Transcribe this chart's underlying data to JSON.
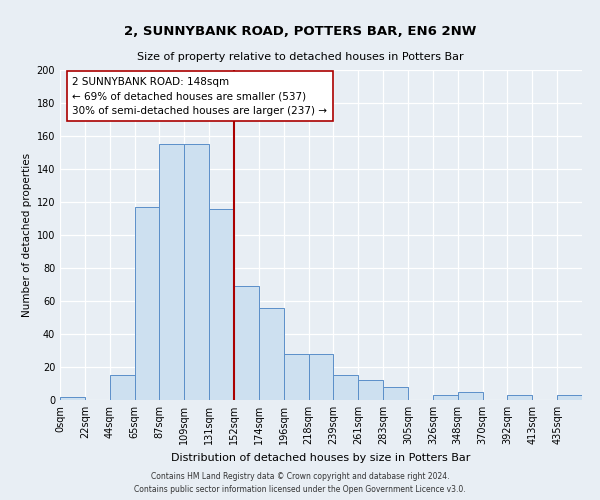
{
  "title": "2, SUNNYBANK ROAD, POTTERS BAR, EN6 2NW",
  "subtitle": "Size of property relative to detached houses in Potters Bar",
  "xlabel": "Distribution of detached houses by size in Potters Bar",
  "ylabel": "Number of detached properties",
  "bar_labels": [
    "0sqm",
    "22sqm",
    "44sqm",
    "65sqm",
    "87sqm",
    "109sqm",
    "131sqm",
    "152sqm",
    "174sqm",
    "196sqm",
    "218sqm",
    "239sqm",
    "261sqm",
    "283sqm",
    "305sqm",
    "326sqm",
    "348sqm",
    "370sqm",
    "392sqm",
    "413sqm",
    "435sqm"
  ],
  "bar_values": [
    2,
    0,
    15,
    117,
    155,
    155,
    116,
    69,
    56,
    28,
    28,
    15,
    12,
    8,
    0,
    3,
    5,
    0,
    3,
    0,
    3
  ],
  "bar_color": "#cde0f0",
  "bar_edge_color": "#5b8fc9",
  "vline_color": "#aa0000",
  "annotation_text": "2 SUNNYBANK ROAD: 148sqm\n← 69% of detached houses are smaller (537)\n30% of semi-detached houses are larger (237) →",
  "annotation_box_color": "#ffffff",
  "annotation_box_edge": "#aa0000",
  "ylim": [
    0,
    200
  ],
  "yticks": [
    0,
    20,
    40,
    60,
    80,
    100,
    120,
    140,
    160,
    180,
    200
  ],
  "footer1": "Contains HM Land Registry data © Crown copyright and database right 2024.",
  "footer2": "Contains public sector information licensed under the Open Government Licence v3.0.",
  "bg_color": "#e8eef4",
  "plot_bg_color": "#e8eef4",
  "grid_color": "#ffffff",
  "title_fontsize": 9.5,
  "subtitle_fontsize": 8,
  "xlabel_fontsize": 8,
  "ylabel_fontsize": 7.5,
  "tick_fontsize": 7,
  "annotation_fontsize": 7.5
}
